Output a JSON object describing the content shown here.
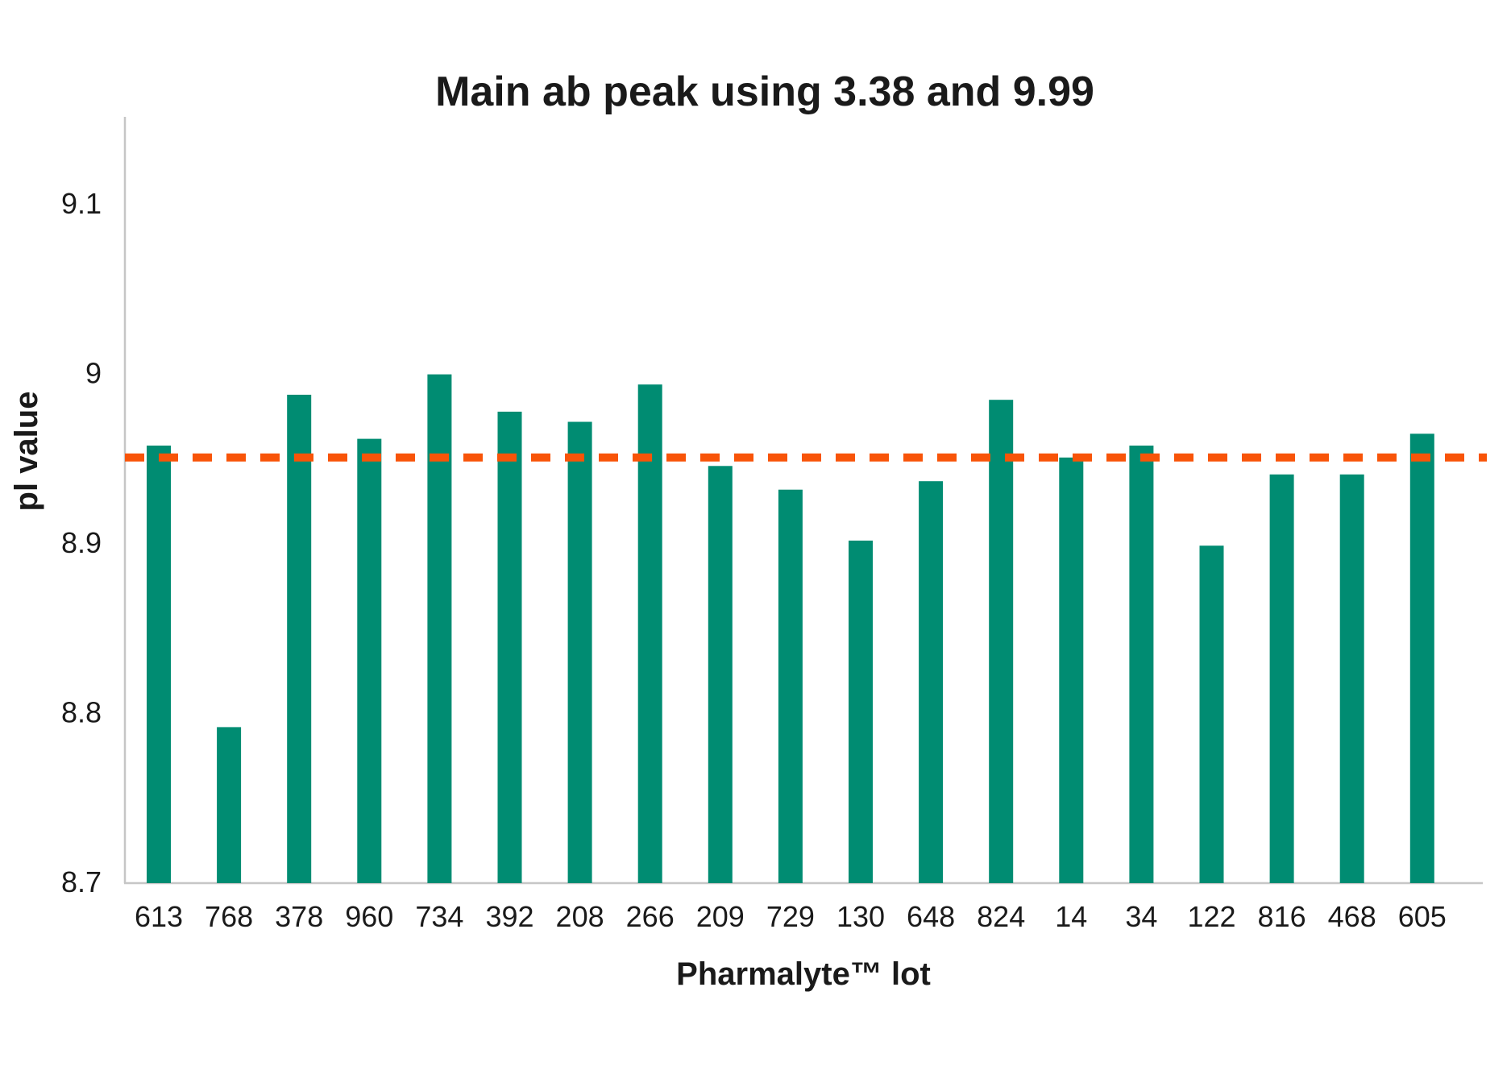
{
  "chart_data": {
    "type": "bar",
    "title": "Main ab peak using 3.38 and 9.99",
    "xlabel": "Pharmalyte™ lot",
    "ylabel": "pl value",
    "categories": [
      "613",
      "768",
      "378",
      "960",
      "734",
      "392",
      "208",
      "266",
      "209",
      "729",
      "130",
      "648",
      "824",
      "14",
      "34",
      "122",
      "816",
      "468",
      "605"
    ],
    "values": [
      8.957,
      8.791,
      8.987,
      8.961,
      8.999,
      8.977,
      8.971,
      8.993,
      8.945,
      8.931,
      8.901,
      8.936,
      8.984,
      8.95,
      8.957,
      8.898,
      8.94,
      8.94,
      8.964
    ],
    "reference_line": {
      "value": 8.95,
      "style": "dashed",
      "color": "#F85408"
    },
    "ylim": [
      8.7,
      9.151
    ],
    "yticks": {
      "values": [
        8.7,
        8.8,
        8.9,
        9.0,
        9.1
      ],
      "labels": [
        "8.7",
        "8.8",
        "8.9",
        "9",
        "9.1"
      ]
    },
    "grid": false,
    "legend": false,
    "bar_color": "#008C72",
    "axis_color": "#C6C6C6",
    "text_color": "#1A1A1A",
    "background_color": "#FFFFFF"
  }
}
